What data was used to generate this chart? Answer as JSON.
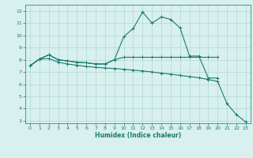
{
  "xlabel": "Humidex (Indice chaleur)",
  "bg_color": "#d8f0ee",
  "grid_color": "#b0d8d4",
  "line_color": "#1a7a6e",
  "xlim": [
    -0.5,
    23.5
  ],
  "ylim": [
    2.8,
    12.5
  ],
  "xticks": [
    0,
    1,
    2,
    3,
    4,
    5,
    6,
    7,
    8,
    9,
    10,
    11,
    12,
    13,
    14,
    15,
    16,
    17,
    18,
    19,
    20,
    21,
    22,
    23
  ],
  "yticks": [
    3,
    4,
    5,
    6,
    7,
    8,
    9,
    10,
    11,
    12
  ],
  "line1_x": [
    0,
    1,
    2,
    3,
    4,
    5,
    6,
    7,
    8,
    9,
    10,
    11,
    12,
    13,
    14,
    15,
    16,
    17,
    18,
    19,
    20
  ],
  "line1_y": [
    7.5,
    8.05,
    8.4,
    8.0,
    7.9,
    7.8,
    7.75,
    7.65,
    7.65,
    8.0,
    9.9,
    10.55,
    11.9,
    11.0,
    11.5,
    11.3,
    10.6,
    8.3,
    8.3,
    6.5,
    6.5
  ],
  "line2_x": [
    0,
    1,
    2,
    3,
    4,
    5,
    6,
    7,
    8,
    9,
    10,
    11,
    12,
    13,
    14,
    15,
    16,
    17,
    18,
    19,
    20
  ],
  "line2_y": [
    7.5,
    8.05,
    8.4,
    8.0,
    7.9,
    7.8,
    7.75,
    7.65,
    7.65,
    8.0,
    8.2,
    8.2,
    8.2,
    8.2,
    8.2,
    8.2,
    8.2,
    8.2,
    8.2,
    8.2,
    8.2
  ],
  "line3_x": [
    0,
    1,
    2,
    3,
    4,
    5,
    6,
    7,
    8,
    9,
    10,
    11,
    12,
    13,
    14,
    15,
    16,
    17,
    18,
    19,
    20,
    21,
    22,
    23
  ],
  "line3_y": [
    7.5,
    8.05,
    8.1,
    7.8,
    7.65,
    7.55,
    7.45,
    7.38,
    7.32,
    7.28,
    7.22,
    7.15,
    7.08,
    7.0,
    6.9,
    6.82,
    6.72,
    6.62,
    6.52,
    6.38,
    6.22,
    4.4,
    3.5,
    2.9
  ]
}
